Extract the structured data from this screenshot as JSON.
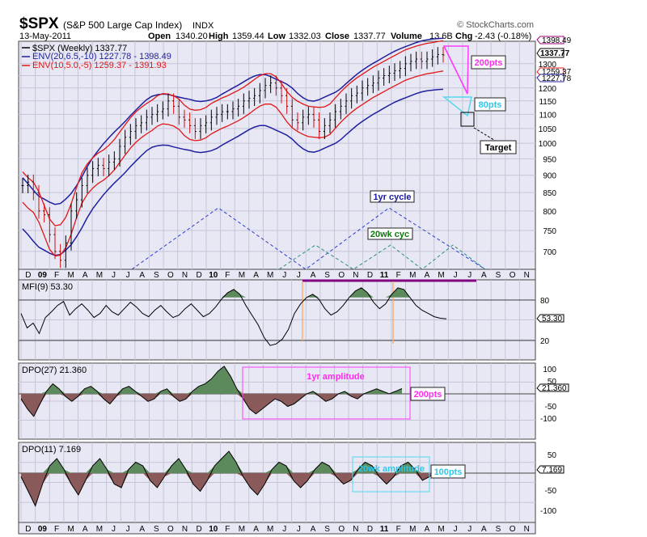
{
  "header": {
    "symbol": "$SPX",
    "name": "(S&P 500 Large Cap Index)",
    "exchange": "INDX",
    "site": "© StockCharts.com",
    "date": "13-May-2011",
    "quote": {
      "open_label": "Open",
      "open": "1340.20",
      "high_label": "High",
      "high": "1359.44",
      "low_label": "Low",
      "low": "1332.03",
      "close_label": "Close",
      "close": "1337.77",
      "volume_label": "Volume",
      "volume": "13.6B",
      "chg_label": "Chg",
      "chg": "-2.43 (-0.18%)"
    }
  },
  "colors": {
    "panel_bg": "#e8e8f4",
    "grid": "#c4c4d8",
    "env20": "#1f1f9f",
    "env10": "#e01818",
    "price": "#000000",
    "cycle_1yr": "#2a3fd0",
    "cycle_20wk": "#2a8f80",
    "fill_up": "#5d8a5d",
    "fill_down": "#8a5a5a",
    "magenta": "#ff3cff",
    "cyan": "#55d8ee",
    "orange": "#ffa860",
    "purple": "#800080"
  },
  "chart_data": [
    {
      "type": "candlestick",
      "panel": "price",
      "legend": [
        "$SPX (Weekly) 1337.77",
        "ENV(20,6.5,-10) 1227.78 - 1398.49",
        "ENV(10,5.0,-5) 1259.37 - 1391.93"
      ],
      "legend_placement": "top-left",
      "x_tick_labels": [
        "D",
        "09",
        "F",
        "M",
        "A",
        "M",
        "J",
        "J",
        "A",
        "S",
        "O",
        "N",
        "D",
        "10",
        "F",
        "M",
        "A",
        "M",
        "J",
        "J",
        "A",
        "S",
        "O",
        "N",
        "D",
        "11",
        "F",
        "M",
        "A",
        "M",
        "J",
        "J",
        "A",
        "S",
        "O",
        "N"
      ],
      "y_ticks": [
        700,
        750,
        800,
        850,
        900,
        950,
        1000,
        1050,
        1100,
        1150,
        1200,
        1250,
        1300
      ],
      "y_range": [
        660,
        1400
      ],
      "y_scale": "log",
      "value_tags": [
        "1398.49",
        "1337.77",
        "1259.37",
        "1227.78"
      ],
      "close_approx": [
        870,
        880,
        850,
        800,
        790,
        740,
        700,
        680,
        720,
        800,
        830,
        870,
        900,
        920,
        930,
        920,
        940,
        950,
        990,
        1020,
        1040,
        1060,
        1070,
        1090,
        1100,
        1110,
        1120,
        1150,
        1130,
        1090,
        1080,
        1060,
        1040,
        1060,
        1070,
        1090,
        1100,
        1110,
        1110,
        1120,
        1130,
        1150,
        1160,
        1170,
        1190,
        1210,
        1220,
        1200,
        1170,
        1130,
        1080,
        1070,
        1090,
        1100,
        1080,
        1040,
        1060,
        1080,
        1110,
        1130,
        1150,
        1170,
        1180,
        1200,
        1210,
        1220,
        1240,
        1250,
        1260,
        1270,
        1280,
        1300,
        1310,
        1320,
        1310,
        1320,
        1330,
        1340,
        1337.77
      ],
      "annotations": [
        {
          "label": "200pts",
          "kind": "magenta projection triangle"
        },
        {
          "label": "80pts",
          "kind": "cyan projection triangle"
        },
        {
          "label": "Target",
          "kind": "box with dashed leader"
        },
        {
          "label": "1yr cycle",
          "kind": "dashed triangle wave"
        },
        {
          "label": "20wk cyc",
          "kind": "dashed triangle wave"
        }
      ]
    },
    {
      "type": "line",
      "panel": "mfi",
      "legend": "MFI(9) 53.30",
      "y_ticks": [
        20,
        80
      ],
      "value_tag": "53.30",
      "values_approx": [
        60,
        42,
        48,
        35,
        55,
        62,
        70,
        75,
        58,
        66,
        72,
        64,
        55,
        60,
        70,
        62,
        58,
        66,
        74,
        68,
        60,
        56,
        64,
        70,
        62,
        55,
        58,
        66,
        72,
        64,
        56,
        60,
        68,
        78,
        86,
        90,
        84,
        70,
        58,
        46,
        30,
        20,
        22,
        28,
        40,
        60,
        72,
        80,
        84,
        78,
        66,
        58,
        62,
        70,
        80,
        88,
        92,
        86,
        74,
        66,
        72,
        84,
        92,
        90,
        80,
        70,
        64,
        60,
        56,
        54,
        53.3
      ]
    },
    {
      "type": "area",
      "panel": "dpo27",
      "legend": "DPO(27) 21.360",
      "y_ticks": [
        100,
        50,
        -50,
        -100
      ],
      "value_tag": "21.360",
      "annotations": [
        {
          "label": "1yr amplitude"
        },
        {
          "label": "200pts"
        }
      ],
      "values_approx": [
        -20,
        -60,
        -90,
        -40,
        10,
        40,
        20,
        -10,
        -30,
        -10,
        20,
        30,
        10,
        -20,
        -40,
        -10,
        20,
        30,
        10,
        -10,
        -30,
        -20,
        10,
        20,
        -10,
        -30,
        -20,
        10,
        30,
        40,
        60,
        90,
        110,
        70,
        20,
        -20,
        -60,
        -80,
        -60,
        -40,
        -20,
        -30,
        -50,
        -40,
        -20,
        0,
        10,
        -10,
        -30,
        -20,
        0,
        10,
        -10,
        -20,
        0,
        10,
        20,
        10,
        0,
        10,
        21.36
      ]
    },
    {
      "type": "area",
      "panel": "dpo11",
      "legend": "DPO(11) 7.169",
      "y_ticks": [
        50,
        -50,
        -100
      ],
      "value_tag": "7.169",
      "annotations": [
        {
          "label": "20wk amplitude"
        },
        {
          "label": "100pts"
        }
      ],
      "values_approx": [
        -10,
        -50,
        -90,
        -30,
        20,
        40,
        10,
        -30,
        -60,
        -20,
        20,
        40,
        10,
        -30,
        -40,
        10,
        30,
        20,
        -20,
        -40,
        -10,
        20,
        40,
        10,
        -30,
        -50,
        -20,
        20,
        40,
        60,
        30,
        -10,
        -40,
        -60,
        -30,
        10,
        30,
        20,
        -20,
        -40,
        -20,
        10,
        30,
        20,
        -10,
        -30,
        -20,
        10,
        30,
        20,
        -10,
        -30,
        -10,
        20,
        30,
        10,
        -20,
        -10,
        7.169
      ]
    }
  ]
}
